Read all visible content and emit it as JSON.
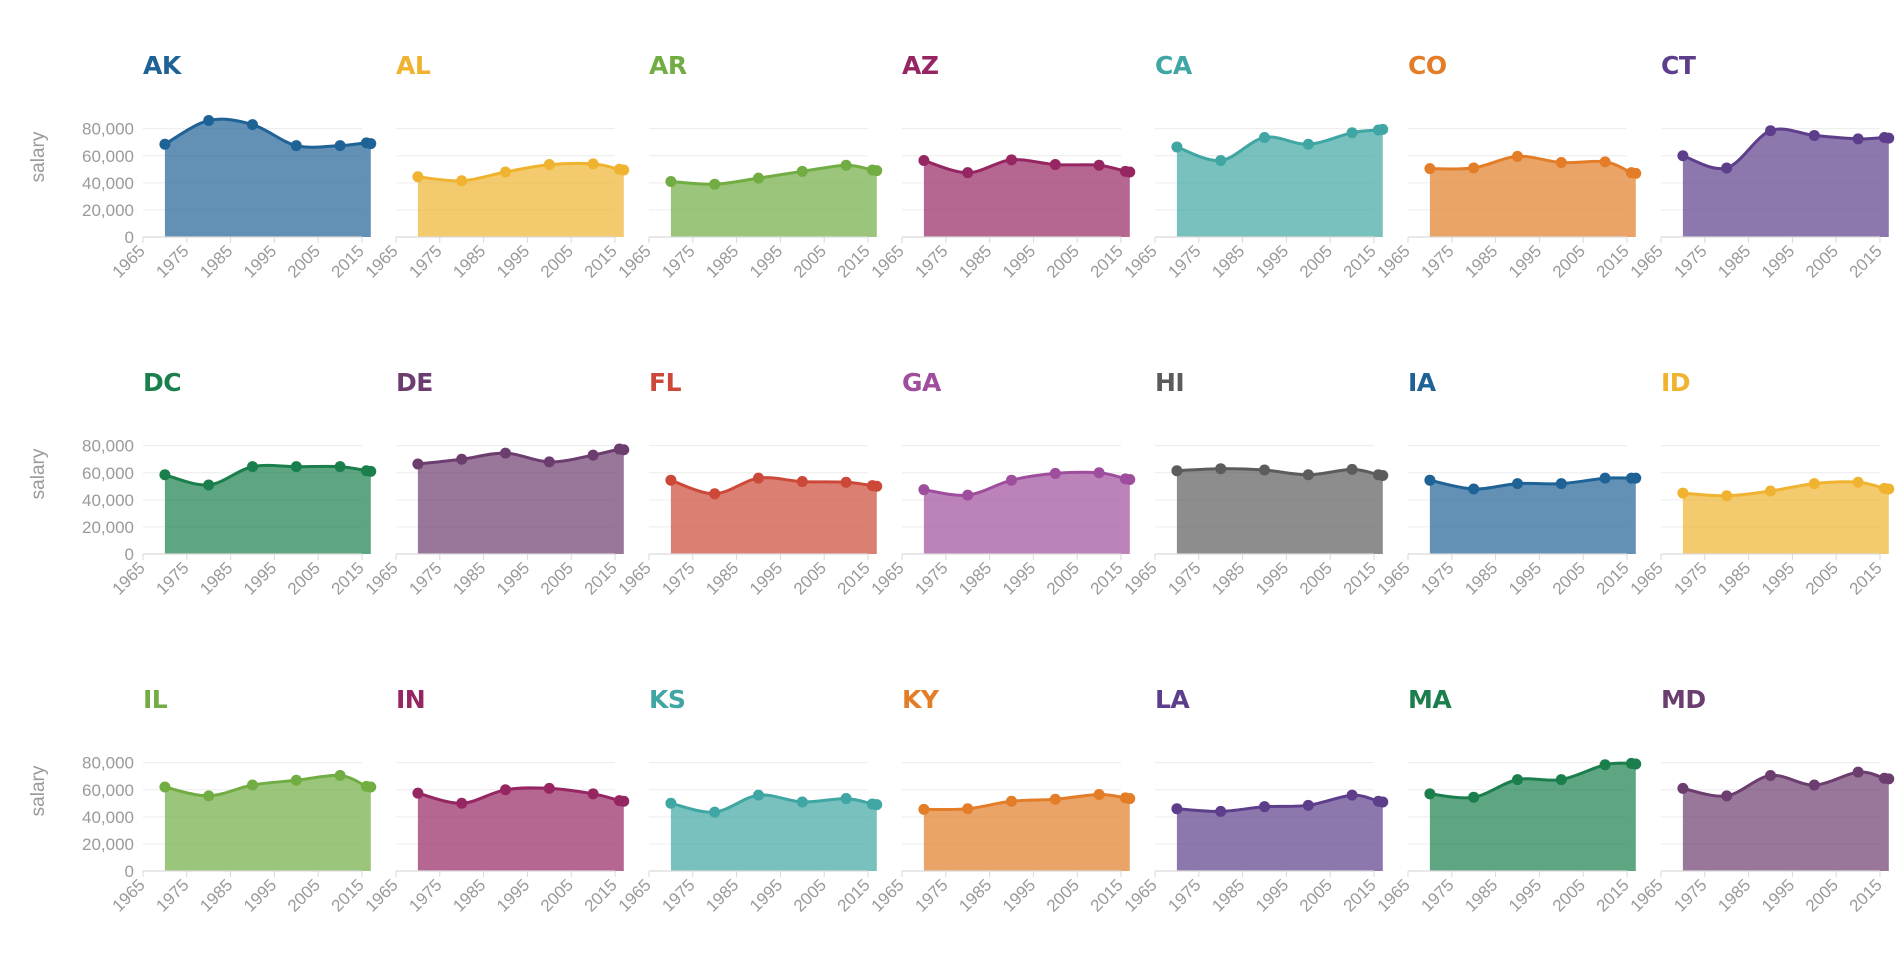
{
  "chart_data": {
    "type": "area",
    "layout": "small-multiples",
    "ylabel": "salary",
    "ylim": [
      0,
      90000
    ],
    "yticks": [
      0,
      20000,
      40000,
      60000,
      80000
    ],
    "ytick_labels": [
      "0",
      "20,000",
      "40,000",
      "60,000",
      "80,000"
    ],
    "xlim": [
      1965,
      2015
    ],
    "xticks": [
      1965,
      1975,
      1985,
      1995,
      2005,
      2015
    ],
    "xtick_labels": [
      "1965",
      "1975",
      "1985",
      "1995",
      "2005",
      "2015"
    ],
    "x": [
      1970,
      1980,
      1990,
      2000,
      2010,
      2016,
      2017
    ],
    "grid": true,
    "legend": "none",
    "panels": [
      {
        "name": "AK",
        "color": "#1f6295",
        "values": [
          68500,
          86000,
          83000,
          67500,
          67500,
          69500,
          69000
        ]
      },
      {
        "name": "AL",
        "color": "#f0b330",
        "values": [
          44500,
          41500,
          48000,
          53500,
          54000,
          50000,
          49500
        ]
      },
      {
        "name": "AR",
        "color": "#71ad43",
        "values": [
          41000,
          39000,
          43500,
          48500,
          53000,
          49500,
          49000
        ]
      },
      {
        "name": "AZ",
        "color": "#962662",
        "values": [
          56500,
          47500,
          57000,
          53500,
          53000,
          48500,
          48000
        ]
      },
      {
        "name": "CA",
        "color": "#3fa6a3",
        "values": [
          66500,
          56500,
          73500,
          68500,
          77000,
          79000,
          79500
        ]
      },
      {
        "name": "CO",
        "color": "#e37d27",
        "values": [
          50500,
          51000,
          59500,
          55000,
          55500,
          47500,
          47000
        ]
      },
      {
        "name": "CT",
        "color": "#5d3e8b",
        "values": [
          60000,
          51000,
          78500,
          75000,
          72500,
          73500,
          73000
        ]
      },
      {
        "name": "DC",
        "color": "#1a7f4c",
        "values": [
          58500,
          51000,
          64500,
          64500,
          64500,
          61500,
          61000
        ]
      },
      {
        "name": "DE",
        "color": "#6c3d6f",
        "values": [
          66500,
          70000,
          74500,
          68000,
          73000,
          77500,
          77000
        ]
      },
      {
        "name": "FL",
        "color": "#cc4838",
        "values": [
          54500,
          44500,
          56000,
          53500,
          53000,
          50500,
          50000
        ]
      },
      {
        "name": "GA",
        "color": "#9e4e9c",
        "values": [
          47500,
          43500,
          54500,
          59500,
          60000,
          55500,
          55000
        ]
      },
      {
        "name": "HI",
        "color": "#5c5c5c",
        "values": [
          61500,
          63000,
          62000,
          58500,
          62500,
          58500,
          58000
        ]
      },
      {
        "name": "IA",
        "color": "#1f6295",
        "values": [
          54500,
          48000,
          52000,
          52000,
          56000,
          56000,
          56000
        ]
      },
      {
        "name": "ID",
        "color": "#f0b330",
        "values": [
          45000,
          43000,
          46500,
          52000,
          53000,
          48500,
          48000
        ]
      },
      {
        "name": "IL",
        "color": "#71ad43",
        "values": [
          62000,
          55500,
          63500,
          67000,
          70500,
          62500,
          62000
        ]
      },
      {
        "name": "IN",
        "color": "#962662",
        "values": [
          57500,
          50000,
          60000,
          61000,
          57000,
          52000,
          51500
        ]
      },
      {
        "name": "KS",
        "color": "#3fa6a3",
        "values": [
          50000,
          43500,
          56000,
          51000,
          53500,
          49500,
          49000
        ]
      },
      {
        "name": "KY",
        "color": "#e37d27",
        "values": [
          45500,
          46000,
          51500,
          53000,
          56500,
          54000,
          53500
        ]
      },
      {
        "name": "LA",
        "color": "#5d3e8b",
        "values": [
          46000,
          44000,
          47500,
          48500,
          56000,
          51500,
          51000
        ]
      },
      {
        "name": "MA",
        "color": "#1a7f4c",
        "values": [
          57000,
          54500,
          67500,
          67500,
          78500,
          79500,
          79000
        ]
      },
      {
        "name": "MD",
        "color": "#6c3d6f",
        "values": [
          61000,
          55500,
          70500,
          63500,
          73000,
          68500,
          68000
        ]
      }
    ]
  }
}
